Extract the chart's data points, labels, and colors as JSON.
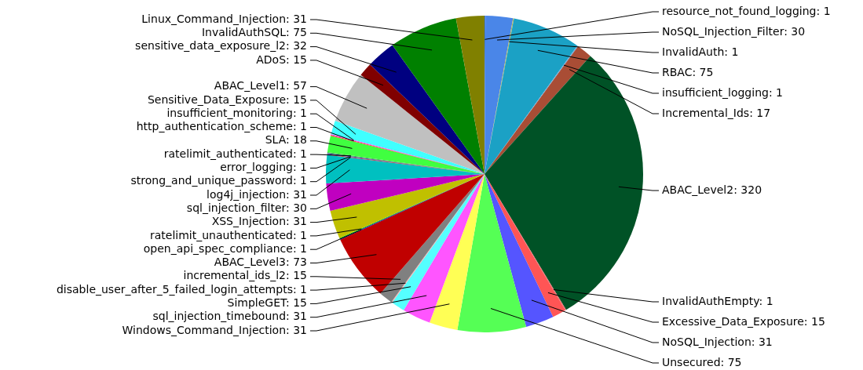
{
  "chart_data": {
    "type": "pie",
    "value_labels": [
      ": 1",
      ": 30",
      ": 1",
      ": 75",
      ": 1",
      ": 17",
      ": 320",
      ": 1",
      ": 15",
      ": 31",
      ": 75",
      ": 31",
      ": 31",
      ": 15",
      ": 1",
      ": 15",
      ": 73",
      ": 1",
      ": 1",
      ": 31",
      ": 30",
      ": 31",
      ": 1",
      ": 1",
      ": 1",
      ": 18",
      ": 1",
      ": 1",
      ": 15",
      ": 57",
      ": 15",
      ": 32",
      ": 75",
      ": 31"
    ],
    "categories": [
      "resource_not_found_logging",
      "NoSQL_Injection_Filter",
      "InvalidAuth",
      "RBAC",
      "insufficient_logging",
      "Incremental_Ids",
      "ABAC_Level2",
      "InvalidAuthEmpty",
      "Excessive_Data_Exposure",
      "NoSQL_Injection",
      "Unsecured",
      "Windows_Command_Injection",
      "sql_injection_timebound",
      "SimpleGET",
      "disable_user_after_5_failed_login_attempts",
      "incremental_ids_l2",
      "ABAC_Level3",
      "open_api_spec_compliance",
      "ratelimit_unauthenticated",
      "XSS_Injection",
      "sql_injection_filter",
      "log4j_injection",
      "strong_and_unique_password",
      "error_logging",
      "ratelimit_authenticated",
      "SLA",
      "http_authentication_scheme",
      "insufficient_monitoring",
      "Sensitive_Data_Exposure",
      "ABAC_Level1",
      "ADoS",
      "sensitive_data_exposure_l2",
      "InvalidAuthSQL",
      "Linux_Command_Injection"
    ],
    "values": [
      1,
      30,
      1,
      75,
      1,
      17,
      320,
      1,
      15,
      31,
      75,
      31,
      31,
      15,
      1,
      15,
      73,
      1,
      1,
      31,
      30,
      31,
      1,
      1,
      1,
      18,
      1,
      1,
      15,
      57,
      15,
      32,
      75,
      31
    ],
    "colors": [
      "#3c78d8",
      "#4a86e8",
      "#b4b45a",
      "#1ba1c5",
      "#6fa8dc",
      "#a94d35",
      "#005226",
      "#e06666",
      "#ff5555",
      "#5555ff",
      "#55ff55",
      "#ffff55",
      "#ff55ff",
      "#55ffff",
      "#ffaaaa",
      "#808080",
      "#c00000",
      "#0000c0",
      "#00c000",
      "#c0c000",
      "#c000c0",
      "#00c0c0",
      "#c04040",
      "#4040c0",
      "#40c040",
      "#40ff40",
      "#ff4040",
      "#ff40ff",
      "#40ffff",
      "#c0c0c0",
      "#800000",
      "#000080",
      "#008000",
      "#808000"
    ]
  }
}
